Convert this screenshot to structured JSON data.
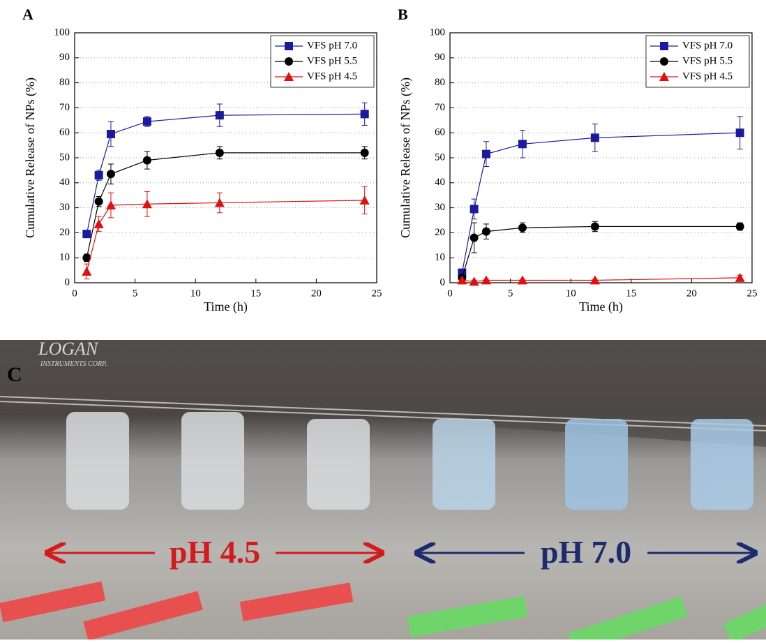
{
  "chart_data": [
    {
      "type": "line",
      "panel": "A",
      "xlabel": "Time (h)",
      "ylabel": "Cumulative Release of NPs (%)",
      "x": [
        1,
        2,
        3,
        6,
        12,
        24
      ],
      "xlim": [
        0,
        25
      ],
      "xticks": [
        0,
        5,
        10,
        15,
        20,
        25
      ],
      "ylim": [
        0,
        100
      ],
      "yticks": [
        0,
        10,
        20,
        30,
        40,
        50,
        60,
        70,
        80,
        90,
        100
      ],
      "grid": "y",
      "legend": "upper right",
      "series": [
        {
          "name": "VFS pH 7.0",
          "color": "#1a1a9c",
          "marker": "square",
          "values": [
            19.5,
            43,
            59.5,
            64.5,
            67,
            67.5
          ],
          "errors": [
            1.5,
            2,
            5,
            2,
            4.5,
            4.5
          ]
        },
        {
          "name": "VFS pH 5.5",
          "color": "#000000",
          "marker": "circle",
          "values": [
            10,
            32.5,
            43.5,
            49,
            52,
            52
          ],
          "errors": [
            1.5,
            2,
            4,
            3.5,
            2.5,
            2.5
          ]
        },
        {
          "name": "VFS pH 4.5",
          "color": "#e01010",
          "marker": "triangle",
          "values": [
            4.5,
            23.5,
            31,
            31.5,
            32,
            33
          ],
          "errors": [
            3,
            3,
            5,
            5,
            4,
            5.5
          ]
        }
      ]
    },
    {
      "type": "line",
      "panel": "B",
      "xlabel": "Time (h)",
      "ylabel": "Cumulative Release of NPs (%)",
      "x": [
        1,
        2,
        3,
        6,
        12,
        24
      ],
      "xlim": [
        0,
        25
      ],
      "xticks": [
        0,
        5,
        10,
        15,
        20,
        25
      ],
      "ylim": [
        0,
        100
      ],
      "yticks": [
        0,
        10,
        20,
        30,
        40,
        50,
        60,
        70,
        80,
        90,
        100
      ],
      "grid": "y",
      "legend": "upper right",
      "series": [
        {
          "name": "VFS pH 7.0",
          "color": "#1a1a9c",
          "marker": "square",
          "values": [
            4,
            29.5,
            51.5,
            55.5,
            58,
            60
          ],
          "errors": [
            1.5,
            4,
            5,
            5.5,
            5.5,
            6.5
          ]
        },
        {
          "name": "VFS pH 5.5",
          "color": "#000000",
          "marker": "circle",
          "values": [
            2,
            18,
            20.5,
            22,
            22.5,
            22.5
          ],
          "errors": [
            1,
            6,
            3,
            2,
            2,
            1.5
          ]
        },
        {
          "name": "VFS pH 4.5",
          "color": "#e01010",
          "marker": "triangle",
          "values": [
            1,
            0.5,
            1,
            1,
            1,
            2
          ],
          "errors": [
            0.5,
            0.5,
            0.5,
            0.5,
            0.5,
            1
          ]
        }
      ]
    }
  ],
  "photo": {
    "panel": "C",
    "brand": "LOGAN",
    "brand_sub": "INSTRUMENTS CORP.",
    "left_label": "pH 4.5",
    "right_label": "pH 7.0"
  }
}
